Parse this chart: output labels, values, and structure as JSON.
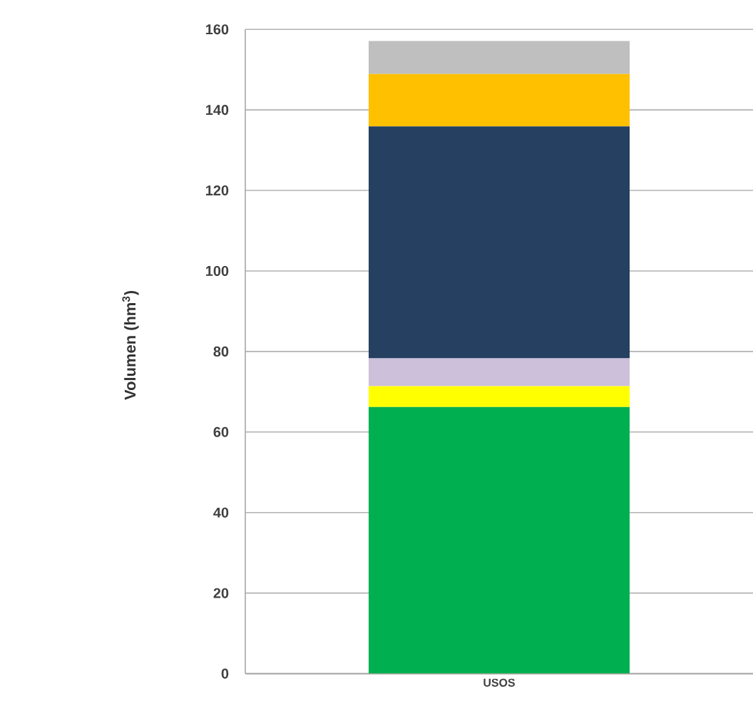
{
  "chart_data": {
    "type": "bar",
    "stacked": true,
    "ylabel": "Volumen (hm$^{3}$)",
    "categories": [
      "USOS"
    ],
    "series": [
      {
        "color": "#00b050",
        "values": [
          66.2
        ]
      },
      {
        "color": "#ffff00",
        "values": [
          5.2
        ]
      },
      {
        "color": "#ccc0da",
        "values": [
          6.9
        ]
      },
      {
        "color": "#254061",
        "values": [
          57.6
        ]
      },
      {
        "color": "#ffc000",
        "values": [
          13.0
        ]
      },
      {
        "color": "#bfbfbf",
        "values": [
          8.2
        ]
      }
    ],
    "ylim": [
      0,
      160
    ],
    "yticks": [
      0,
      20,
      40,
      60,
      80,
      100,
      120,
      140,
      160
    ],
    "grid": true
  }
}
